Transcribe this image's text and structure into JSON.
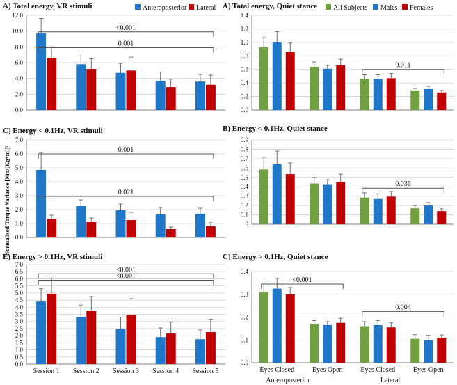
{
  "y_axis_label": "Normalised Torque Variance [Nm/(Kg*m)]²",
  "colors": {
    "ap": "#1F77C9",
    "lat": "#C00000",
    "all": "#70A040",
    "axis": "#808080",
    "grid": "#d0d0d0",
    "err": "#707070"
  },
  "left_legend": [
    {
      "label": "Anteroposterior",
      "color": "#1F77C9"
    },
    {
      "label": "Lateral",
      "color": "#C00000"
    }
  ],
  "right_legend": [
    {
      "label": "All Subjects",
      "color": "#70A040"
    },
    {
      "label": "Males",
      "color": "#1F77C9"
    },
    {
      "label": "Females",
      "color": "#C00000"
    }
  ],
  "right_group_labels": [
    "Anteroposterior",
    "Lateral"
  ],
  "chart_data": [
    {
      "id": "vr_total",
      "type": "bar",
      "title": "A) Total energy, VR stimuli",
      "categories": [
        "Session 1",
        "Session 2",
        "Session 3",
        "Session 4",
        "Session 5"
      ],
      "ylim": [
        0,
        12.0
      ],
      "yticks": [
        "0.0",
        "2.0",
        "4.0",
        "6.0",
        "8.0",
        "10.0",
        "12.0"
      ],
      "show_xlabels": false,
      "series": [
        {
          "name": "Anteroposterior",
          "color": "#1F77C9",
          "values": [
            9.7,
            5.8,
            4.7,
            3.7,
            3.6
          ],
          "errors": [
            1.9,
            1.3,
            1.2,
            1.1,
            0.9
          ]
        },
        {
          "name": "Lateral",
          "color": "#C00000",
          "values": [
            6.6,
            5.2,
            5.0,
            2.9,
            3.2
          ],
          "errors": [
            1.4,
            1.3,
            1.7,
            1.0,
            1.2
          ]
        }
      ],
      "annotations": [
        {
          "text": "<0.001",
          "from": 0,
          "to": 4,
          "level": 9.9
        },
        {
          "text": "0.001",
          "from": 0,
          "to": 4,
          "level": 7.9
        }
      ]
    },
    {
      "id": "vr_low",
      "type": "bar",
      "title": "C) Energy < 0.1Hz, VR stimuli",
      "categories": [
        "Session 1",
        "Session 2",
        "Session 3",
        "Session 4",
        "Session 5"
      ],
      "ylim": [
        0,
        7.0
      ],
      "yticks": [
        "0.0",
        "1.0",
        "2.0",
        "3.0",
        "4.0",
        "5.0",
        "6.0",
        "7.0"
      ],
      "show_xlabels": false,
      "series": [
        {
          "name": "Anteroposterior",
          "color": "#1F77C9",
          "values": [
            4.85,
            2.25,
            1.95,
            1.65,
            1.7
          ],
          "errors": [
            1.25,
            0.45,
            0.45,
            0.5,
            0.4
          ]
        },
        {
          "name": "Lateral",
          "color": "#C00000",
          "values": [
            1.3,
            1.1,
            1.25,
            0.6,
            0.8
          ],
          "errors": [
            0.3,
            0.3,
            0.55,
            0.15,
            0.25
          ]
        }
      ],
      "annotations": [
        {
          "text": "0.001",
          "from": 0,
          "to": 4,
          "level": 6.0
        },
        {
          "text": "0.021",
          "from": 0,
          "to": 4,
          "level": 2.95
        }
      ]
    },
    {
      "id": "vr_high",
      "type": "bar",
      "title": "E) Energy > 0.1Hz, VR stimuli",
      "categories": [
        "Session 1",
        "Session 2",
        "Session 3",
        "Session 4",
        "Session 5"
      ],
      "ylim": [
        0,
        7.0
      ],
      "yticks": [
        "0.0",
        "0.5",
        "1.0",
        "1.5",
        "2.0",
        "2.5",
        "3.0",
        "3.5",
        "4.0",
        "4.5",
        "5.0",
        "5.5",
        "6.0",
        "6.5",
        "7.0"
      ],
      "show_xlabels": true,
      "series": [
        {
          "name": "Anteroposterior",
          "color": "#1F77C9",
          "values": [
            4.4,
            3.3,
            2.5,
            1.9,
            1.75
          ],
          "errors": [
            0.9,
            0.85,
            0.8,
            0.65,
            0.65
          ]
        },
        {
          "name": "Lateral",
          "color": "#C00000",
          "values": [
            4.95,
            3.75,
            3.45,
            2.15,
            2.25
          ],
          "errors": [
            1.1,
            1.0,
            1.15,
            0.8,
            0.9
          ]
        }
      ],
      "annotations": [
        {
          "text": "<0.001",
          "from": 0,
          "to": 4,
          "level": 6.35
        },
        {
          "text": "<0.001",
          "from": 0,
          "to": 4,
          "level": 5.9
        }
      ]
    },
    {
      "id": "qs_total",
      "type": "bar",
      "title": "A) Total energy, Quiet stance",
      "categories": [
        "Eyes Closed",
        "Eyes Open",
        "Eyes Closed",
        "Eyes Open"
      ],
      "ylim": [
        0,
        1.4
      ],
      "yticks": [
        "0.0",
        "0.2",
        "0.4",
        "0.6",
        "0.8",
        "1.0",
        "1.2",
        "1.4"
      ],
      "show_xlabels": false,
      "series": [
        {
          "name": "All Subjects",
          "color": "#70A040",
          "values": [
            0.93,
            0.64,
            0.46,
            0.29
          ],
          "errors": [
            0.14,
            0.07,
            0.06,
            0.03
          ]
        },
        {
          "name": "Males",
          "color": "#1F77C9",
          "values": [
            1.0,
            0.61,
            0.46,
            0.31
          ],
          "errors": [
            0.16,
            0.05,
            0.06,
            0.04
          ]
        },
        {
          "name": "Females",
          "color": "#C00000",
          "values": [
            0.86,
            0.66,
            0.47,
            0.26
          ],
          "errors": [
            0.13,
            0.09,
            0.07,
            0.03
          ]
        }
      ],
      "annotations": [
        {
          "text": "0.011",
          "from": 2,
          "to": 3,
          "level": 0.6
        }
      ]
    },
    {
      "id": "qs_low",
      "type": "bar",
      "title": "B) Energy < 0.1Hz, Quiet stance",
      "categories": [
        "Eyes Closed",
        "Eyes Open",
        "Eyes Closed",
        "Eyes Open"
      ],
      "ylim": [
        0,
        0.9
      ],
      "yticks": [
        "0",
        "0.1",
        "0.2",
        "0.3",
        "0.4",
        "0.5",
        "0.6",
        "0.7",
        "0.8",
        "0.9"
      ],
      "show_xlabels": false,
      "series": [
        {
          "name": "All Subjects",
          "color": "#70A040",
          "values": [
            0.585,
            0.435,
            0.285,
            0.17
          ],
          "errors": [
            0.13,
            0.065,
            0.05,
            0.03
          ]
        },
        {
          "name": "Males",
          "color": "#1F77C9",
          "values": [
            0.64,
            0.42,
            0.27,
            0.2
          ],
          "errors": [
            0.14,
            0.055,
            0.055,
            0.03
          ]
        },
        {
          "name": "Females",
          "color": "#C00000",
          "values": [
            0.535,
            0.45,
            0.295,
            0.14
          ],
          "errors": [
            0.12,
            0.085,
            0.055,
            0.025
          ]
        }
      ],
      "annotations": [
        {
          "text": "0.036",
          "from": 2,
          "to": 3,
          "level": 0.385
        }
      ]
    },
    {
      "id": "qs_high",
      "type": "bar",
      "title": "C) Energy > 0.1Hz, Quiet stance",
      "categories": [
        "Eyes Closed",
        "Eyes Open",
        "Eyes Closed",
        "Eyes Open"
      ],
      "ylim": [
        0,
        0.4
      ],
      "yticks": [
        "0.0",
        "0.1",
        "0.2",
        "0.3",
        "0.4"
      ],
      "show_xlabels": true,
      "series": [
        {
          "name": "All Subjects",
          "color": "#70A040",
          "values": [
            0.31,
            0.17,
            0.16,
            0.105
          ],
          "errors": [
            0.04,
            0.015,
            0.02,
            0.018
          ]
        },
        {
          "name": "Males",
          "color": "#1F77C9",
          "values": [
            0.325,
            0.165,
            0.165,
            0.1
          ],
          "errors": [
            0.045,
            0.015,
            0.02,
            0.02
          ]
        },
        {
          "name": "Females",
          "color": "#C00000",
          "values": [
            0.3,
            0.175,
            0.155,
            0.11
          ],
          "errors": [
            0.03,
            0.02,
            0.02,
            0.012
          ]
        }
      ],
      "annotations": [
        {
          "text": "<0.001",
          "from": 0,
          "to": 1,
          "level": 0.345
        },
        {
          "text": "0.004",
          "from": 2,
          "to": 3,
          "level": 0.225
        }
      ]
    }
  ]
}
